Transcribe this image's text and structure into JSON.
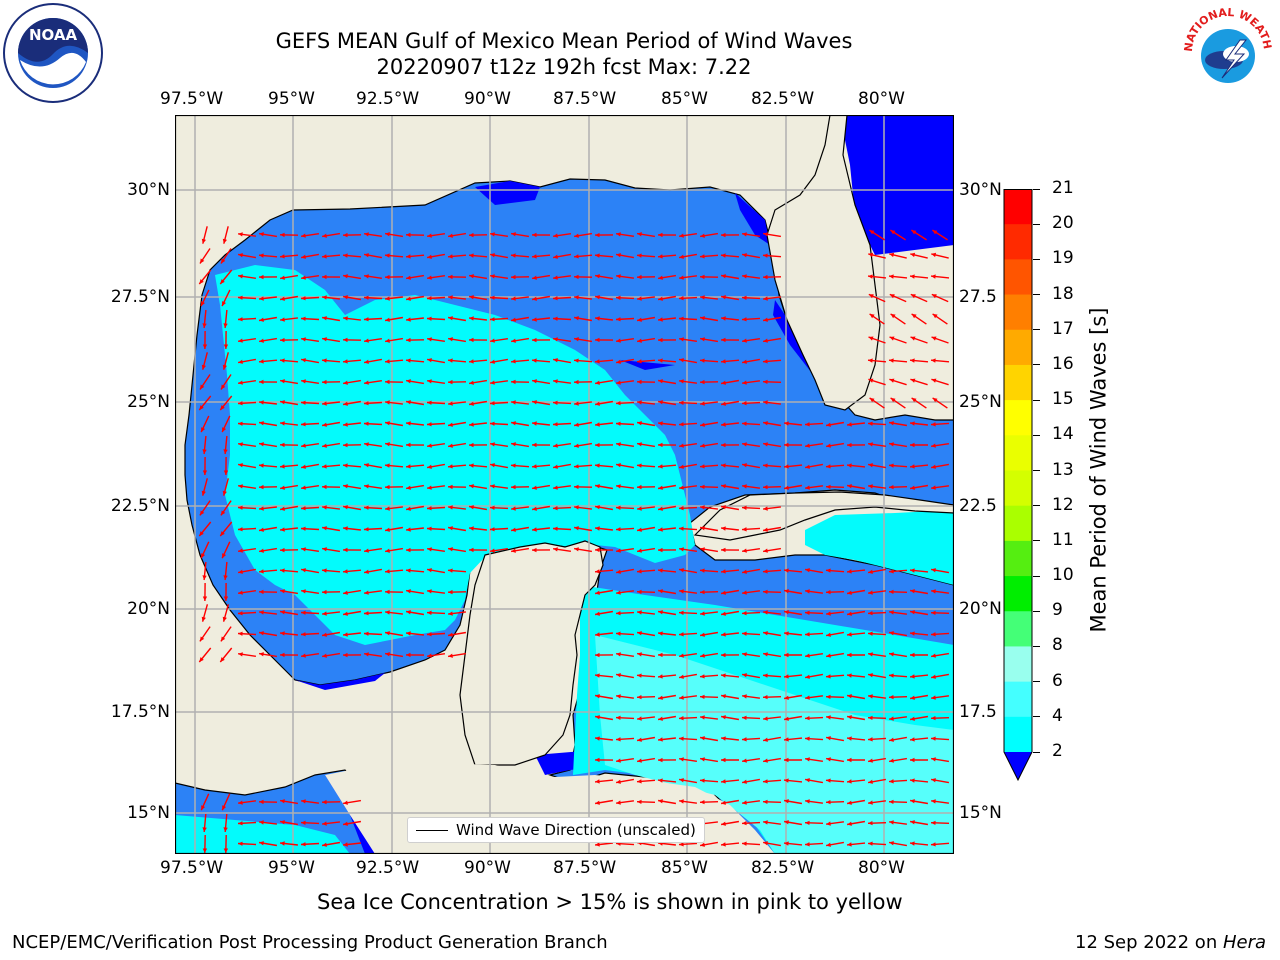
{
  "title": {
    "line1": "GEFS MEAN Gulf of Mexico Mean Period of Wind Waves",
    "line2": "20220907 t12z 192h fcst   Max: 7.22"
  },
  "logos": {
    "left": {
      "name": "NOAA",
      "ring_text": "NATIONAL OCEANIC AND ATMOSPHERIC ADMINISTRATION · U.S. DEPARTMENT OF COMMERCE"
    },
    "right": {
      "name": "NATIONAL WEATHER SERVICE"
    }
  },
  "map": {
    "lon_labels": [
      "97.5°W",
      "95°W",
      "92.5°W",
      "90°W",
      "87.5°W",
      "85°W",
      "82.5°W",
      "80°W"
    ],
    "lat_labels_left": [
      "30°N",
      "27.5°N",
      "25°N",
      "22.5°N",
      "20°N",
      "17.5°N",
      "15°N"
    ],
    "lat_labels_right": [
      "30°N",
      "27.5",
      "25°N",
      "22.5",
      "20°N",
      "17.5",
      "15°N"
    ],
    "legend": "Wind Wave Direction (unscaled)",
    "colors": {
      "land": "#efedde",
      "ocean_2_4": "#2c82f6",
      "ocean_4_6": "#03fbfc",
      "ocean_6_8": "#56fffb",
      "ocean_below": "#0000ff",
      "arrow": "#ff0000",
      "grid": "#b0b0b0"
    }
  },
  "colorbar": {
    "label": "Mean Period of Wind Waves [s]",
    "ticks": [
      "21",
      "20",
      "19",
      "18",
      "17",
      "16",
      "15",
      "14",
      "13",
      "12",
      "11",
      "10",
      "9",
      "8",
      "6",
      "4",
      "2"
    ],
    "colors": [
      "#ff0000",
      "#ff2a00",
      "#ff5500",
      "#ff7f00",
      "#ffaa00",
      "#ffd400",
      "#ffff00",
      "#eaff00",
      "#d4ff00",
      "#aaff00",
      "#55ee11",
      "#00ee00",
      "#44ff77",
      "#99ffee",
      "#44ffff",
      "#00ffff",
      "#0077ff"
    ],
    "extend_color": "#0000ff"
  },
  "subtitle": "Sea Ice Concentration > 15% is shown in pink to yellow",
  "footer": {
    "left": "NCEP/EMC/Verification Post Processing Product Generation Branch",
    "right_date": "12 Sep 2022 on ",
    "right_host": "Hera"
  }
}
